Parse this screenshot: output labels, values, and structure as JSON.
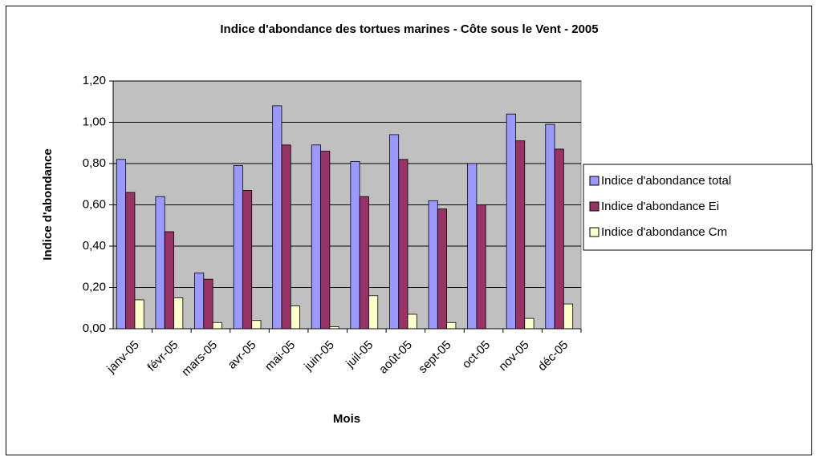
{
  "chart_data": {
    "type": "bar",
    "title": "Indice d'abondance des tortues marines - Côte sous le Vent - 2005",
    "x_label": "Mois",
    "y_label": "Indice d'abondance",
    "categories": [
      "janv-05",
      "févr-05",
      "mars-05",
      "avr-05",
      "mai-05",
      "juin-05",
      "juil-05",
      "août-05",
      "sept-05",
      "oct-05",
      "nov-05",
      "déc-05"
    ],
    "series": [
      {
        "name": "Indice d'abondance total",
        "color": "#9999ff",
        "values": [
          0.82,
          0.64,
          0.27,
          0.79,
          1.08,
          0.89,
          0.81,
          0.94,
          0.62,
          0.8,
          1.04,
          0.99
        ]
      },
      {
        "name": "Indice d'abondance Ei",
        "color": "#993366",
        "values": [
          0.66,
          0.47,
          0.24,
          0.67,
          0.89,
          0.86,
          0.64,
          0.82,
          0.58,
          0.6,
          0.91,
          0.87
        ]
      },
      {
        "name": "Indice d'abondance Cm",
        "color": "#ffffcc",
        "values": [
          0.14,
          0.15,
          0.03,
          0.04,
          0.11,
          0.01,
          0.16,
          0.07,
          0.03,
          0.0,
          0.05,
          0.12
        ]
      }
    ],
    "ylim": [
      0,
      1.2
    ],
    "yticks": [
      {
        "value": 0,
        "label": "0,00"
      },
      {
        "value": 0.2,
        "label": "0,20"
      },
      {
        "value": 0.4,
        "label": "0,40"
      },
      {
        "value": 0.6,
        "label": "0,60"
      },
      {
        "value": 0.8,
        "label": "0,80"
      },
      {
        "value": 1.0,
        "label": "1,00"
      },
      {
        "value": 1.2,
        "label": "1,20"
      }
    ],
    "grid": true,
    "plot_background": "#c0c0c0",
    "legend": "right"
  }
}
